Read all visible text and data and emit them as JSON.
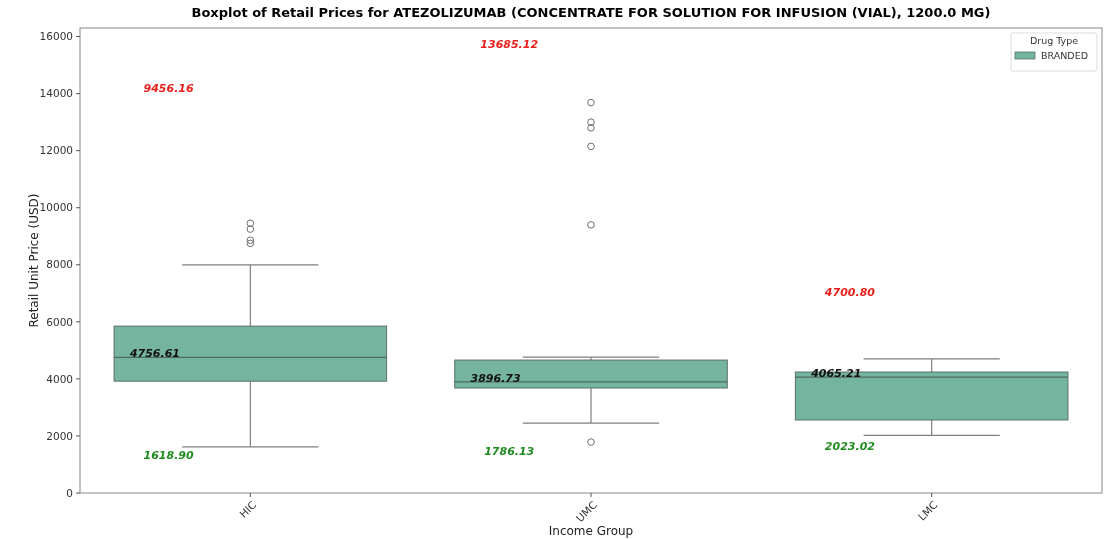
{
  "chart_data": {
    "type": "box",
    "title": "Boxplot of Retail Prices for ATEZOLIZUMAB (CONCENTRATE FOR SOLUTION FOR INFUSION (VIAL), 1200.0 MG)",
    "xlabel": "Income Group",
    "ylabel": "Retail Unit Price (USD)",
    "legend_title": "Drug Type",
    "legend": "top right",
    "categories": [
      "HIC",
      "UMC",
      "LMC"
    ],
    "ylim": [
      0,
      16300
    ],
    "yticks": [
      0,
      2000,
      4000,
      6000,
      8000,
      10000,
      12000,
      14000,
      16000
    ],
    "series": [
      {
        "name": "BRANDED",
        "color": "#75b5a0",
        "boxes": [
          {
            "low": 1618.9,
            "q1": 3920,
            "median": 4756.61,
            "q3": 5850,
            "high": 8000,
            "outliers": [
              8750,
              8860,
              9250,
              9456.16
            ]
          },
          {
            "low": 2450,
            "q1": 3680,
            "median": 3896.73,
            "q3": 4660,
            "high": 4760,
            "outliers": [
              1786.13,
              9400,
              12150,
              12800,
              13000,
              13685.12
            ]
          },
          {
            "low": 2023.02,
            "q1": 2560,
            "median": 4065.21,
            "q3": 4240,
            "high": 4700.8
          }
        ]
      }
    ],
    "annotations": [
      "9456.16",
      "4756.61",
      "1618.90",
      "13685.12",
      "3896.73",
      "1786.13",
      "4700.80",
      "4065.21",
      "2023.02"
    ]
  }
}
